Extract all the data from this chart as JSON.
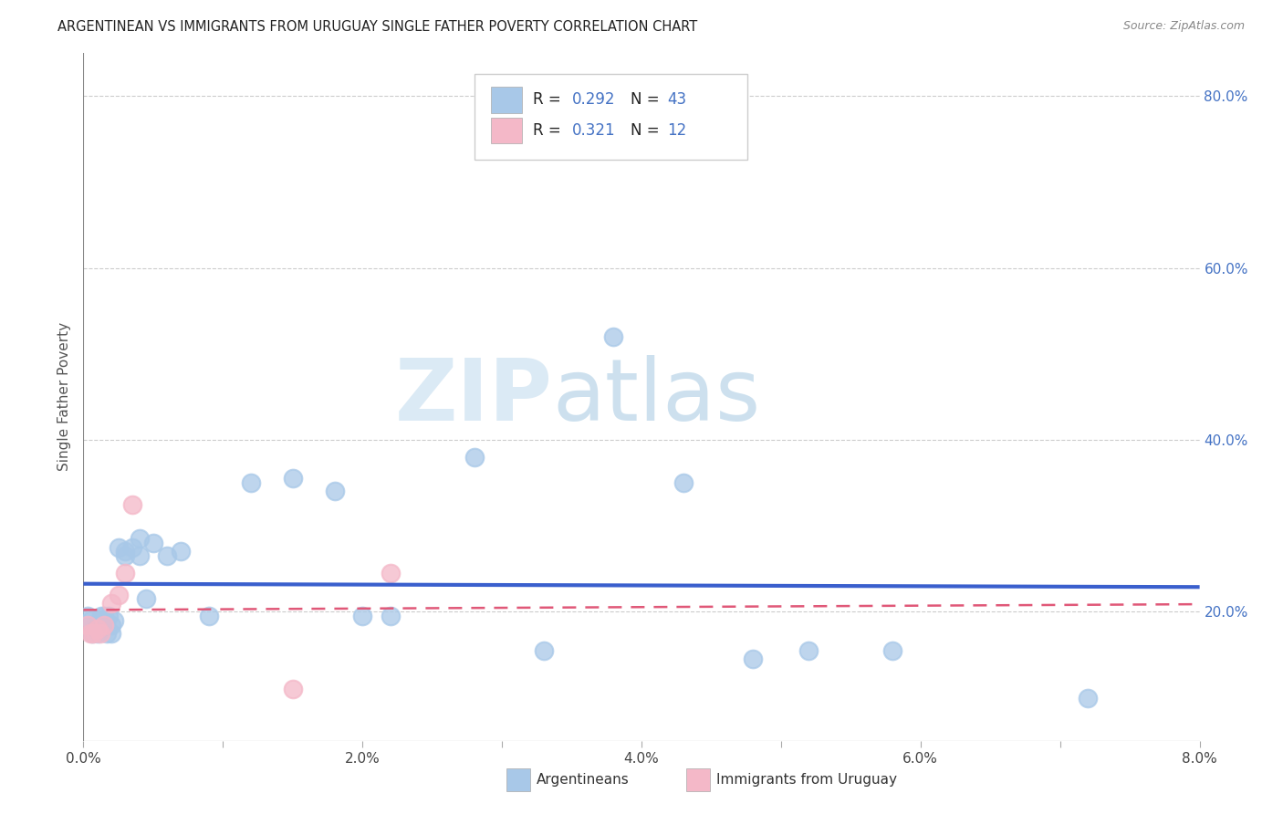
{
  "title": "ARGENTINEAN VS IMMIGRANTS FROM URUGUAY SINGLE FATHER POVERTY CORRELATION CHART",
  "source": "Source: ZipAtlas.com",
  "ylabel": "Single Father Poverty",
  "xlim": [
    0.0,
    0.08
  ],
  "ylim": [
    0.04,
    0.85
  ],
  "blue_color": "#a8c8e8",
  "pink_color": "#f4b8c8",
  "line_blue": "#3a5fcd",
  "line_pink": "#e05878",
  "watermark_color": "#d8e8f4",
  "arg_x": [
    0.0003,
    0.0005,
    0.0006,
    0.0008,
    0.001,
    0.0012,
    0.0013,
    0.0015,
    0.0016,
    0.0018,
    0.002,
    0.002,
    0.002,
    0.0025,
    0.0025,
    0.003,
    0.003,
    0.0035,
    0.004,
    0.004,
    0.0045,
    0.005,
    0.005,
    0.0055,
    0.006,
    0.007,
    0.008,
    0.009,
    0.012,
    0.015,
    0.018,
    0.02,
    0.022,
    0.025,
    0.028,
    0.033,
    0.035,
    0.038,
    0.043,
    0.048,
    0.052,
    0.058,
    0.072
  ],
  "arg_y": [
    0.195,
    0.19,
    0.175,
    0.185,
    0.175,
    0.185,
    0.19,
    0.195,
    0.185,
    0.195,
    0.175,
    0.185,
    0.195,
    0.19,
    0.185,
    0.215,
    0.195,
    0.165,
    0.285,
    0.265,
    0.275,
    0.28,
    0.265,
    0.275,
    0.265,
    0.27,
    0.22,
    0.195,
    0.35,
    0.355,
    0.34,
    0.21,
    0.195,
    0.38,
    0.355,
    0.38,
    0.15,
    0.52,
    0.35,
    0.145,
    0.155,
    0.155,
    0.1
  ],
  "uru_x": [
    0.0003,
    0.0005,
    0.0007,
    0.001,
    0.0012,
    0.0015,
    0.002,
    0.0025,
    0.003,
    0.004,
    0.015,
    0.022
  ],
  "uru_y": [
    0.185,
    0.175,
    0.175,
    0.18,
    0.175,
    0.195,
    0.22,
    0.215,
    0.24,
    0.325,
    0.11,
    0.245
  ]
}
